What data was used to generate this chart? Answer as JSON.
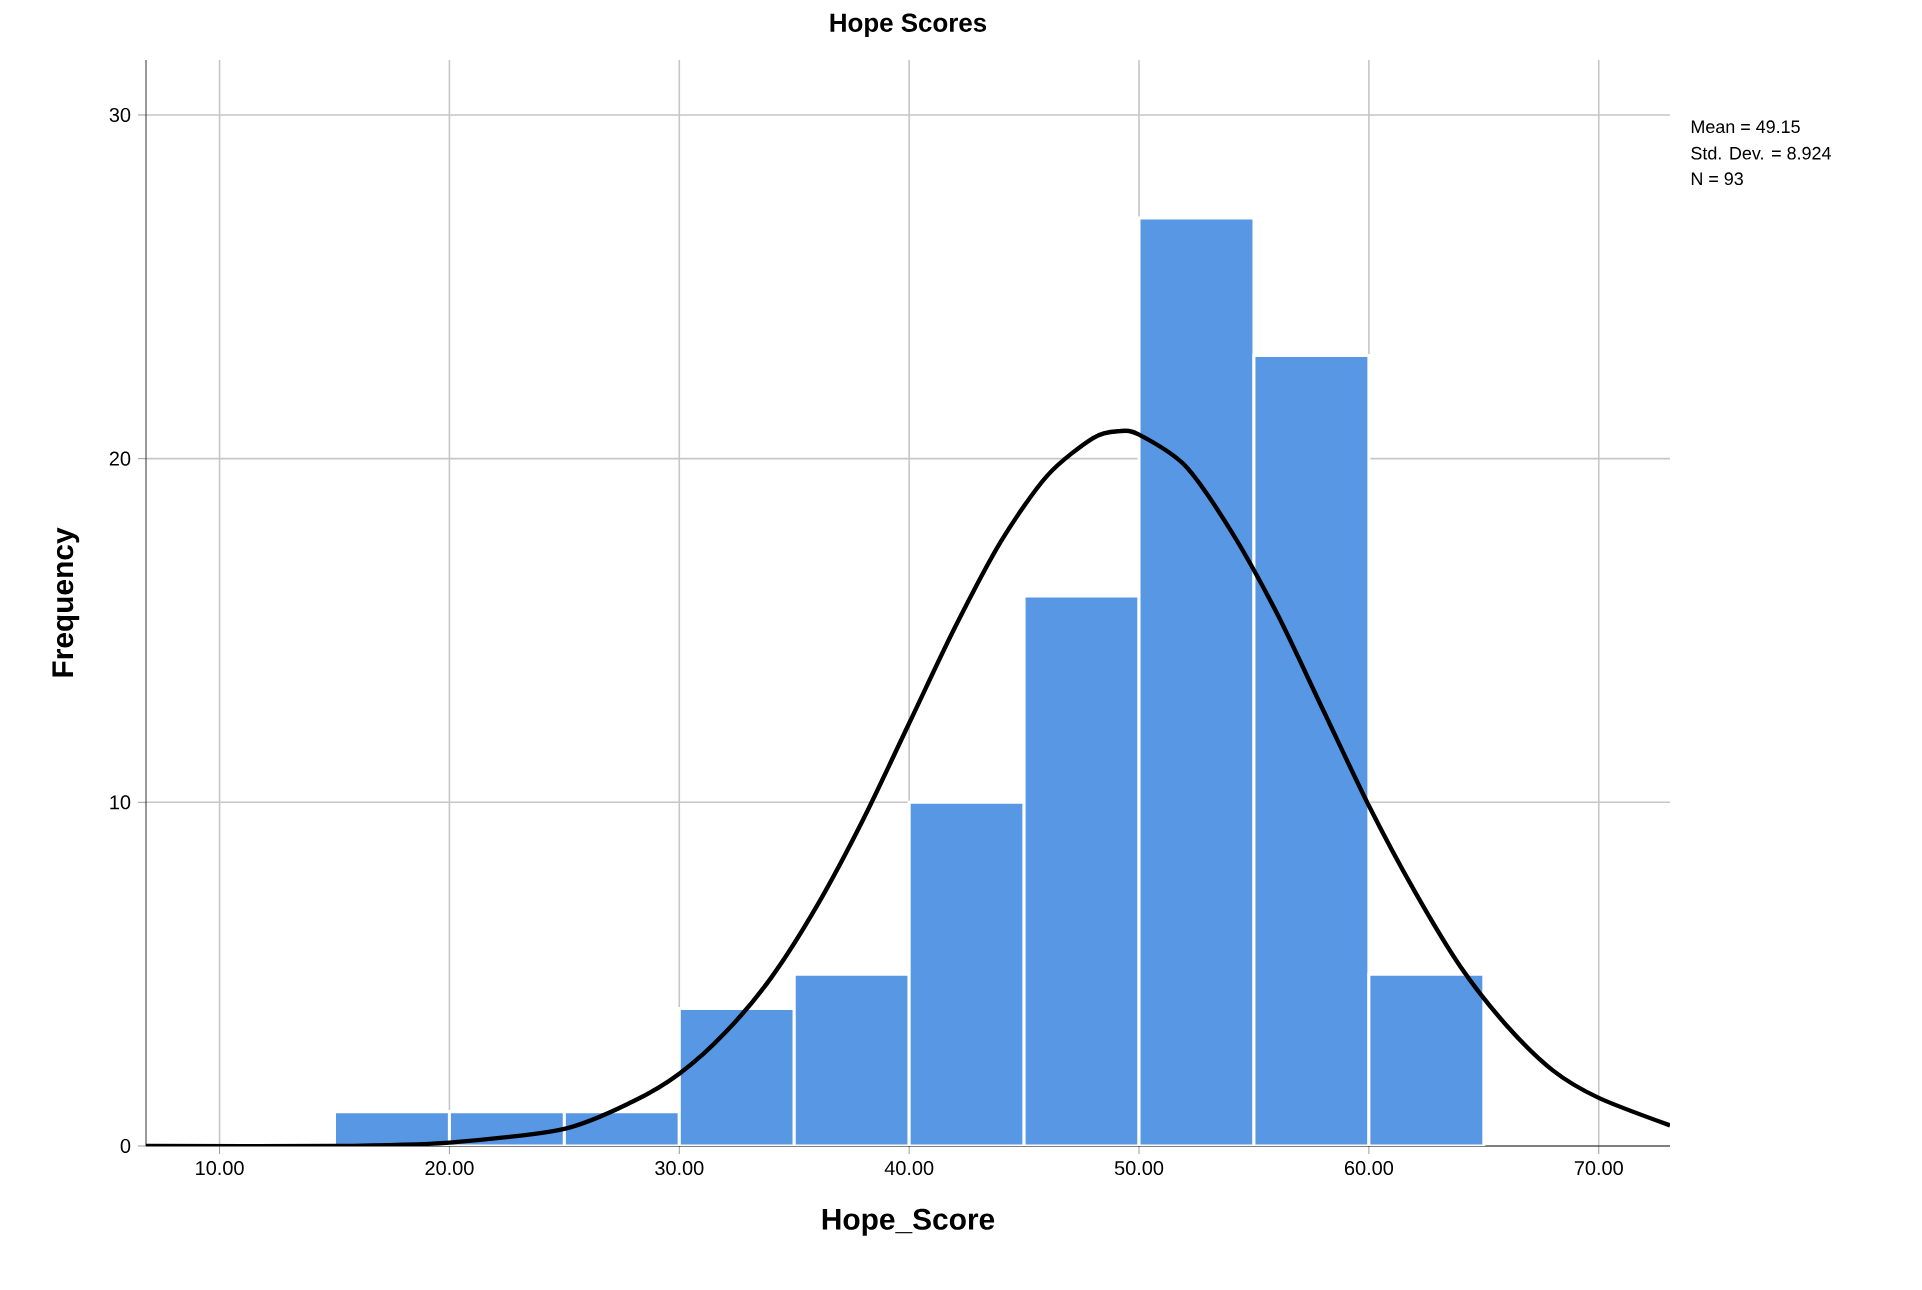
{
  "chart_data": {
    "type": "histogram",
    "title": "Hope Scores",
    "xlabel": "Hope_Score",
    "ylabel": "Frequency",
    "xlim": [
      6.8,
      73.1
    ],
    "ylim": [
      0,
      31.6
    ],
    "xticks": [
      {
        "value": 10,
        "label": "10.00"
      },
      {
        "value": 20,
        "label": "20.00"
      },
      {
        "value": 30,
        "label": "30.00"
      },
      {
        "value": 40,
        "label": "40.00"
      },
      {
        "value": 50,
        "label": "50.00"
      },
      {
        "value": 60,
        "label": "60.00"
      },
      {
        "value": 70,
        "label": "70.00"
      }
    ],
    "yticks": [
      0,
      10,
      20,
      30
    ],
    "grid": true,
    "series": [
      {
        "color": "#5797e3",
        "bins": [
          15,
          20,
          25,
          30,
          35,
          40,
          45,
          50,
          55,
          60,
          65
        ],
        "values": [
          1,
          1,
          1,
          4,
          5,
          10,
          16,
          27,
          23,
          5
        ]
      },
      {
        "type": "line",
        "color": "#000000",
        "x": [
          6.8,
          15,
          20,
          25,
          28,
          30,
          32,
          34,
          36,
          38,
          40,
          42,
          44,
          46,
          48,
          49.15,
          50,
          52,
          54,
          56,
          58,
          60,
          62,
          64,
          66,
          68,
          70,
          73.1
        ],
        "values": [
          0.0,
          0.0,
          0.1,
          0.5,
          1.3,
          2.1,
          3.3,
          4.9,
          7.0,
          9.5,
          12.3,
          15.1,
          17.6,
          19.5,
          20.6,
          20.8,
          20.7,
          19.8,
          17.9,
          15.5,
          12.7,
          9.9,
          7.4,
          5.2,
          3.5,
          2.2,
          1.4,
          0.6
        ]
      }
    ],
    "annotations": [
      "Mean = 49.15",
      "Std. Dev. = 8.924",
      "N = 93"
    ]
  }
}
